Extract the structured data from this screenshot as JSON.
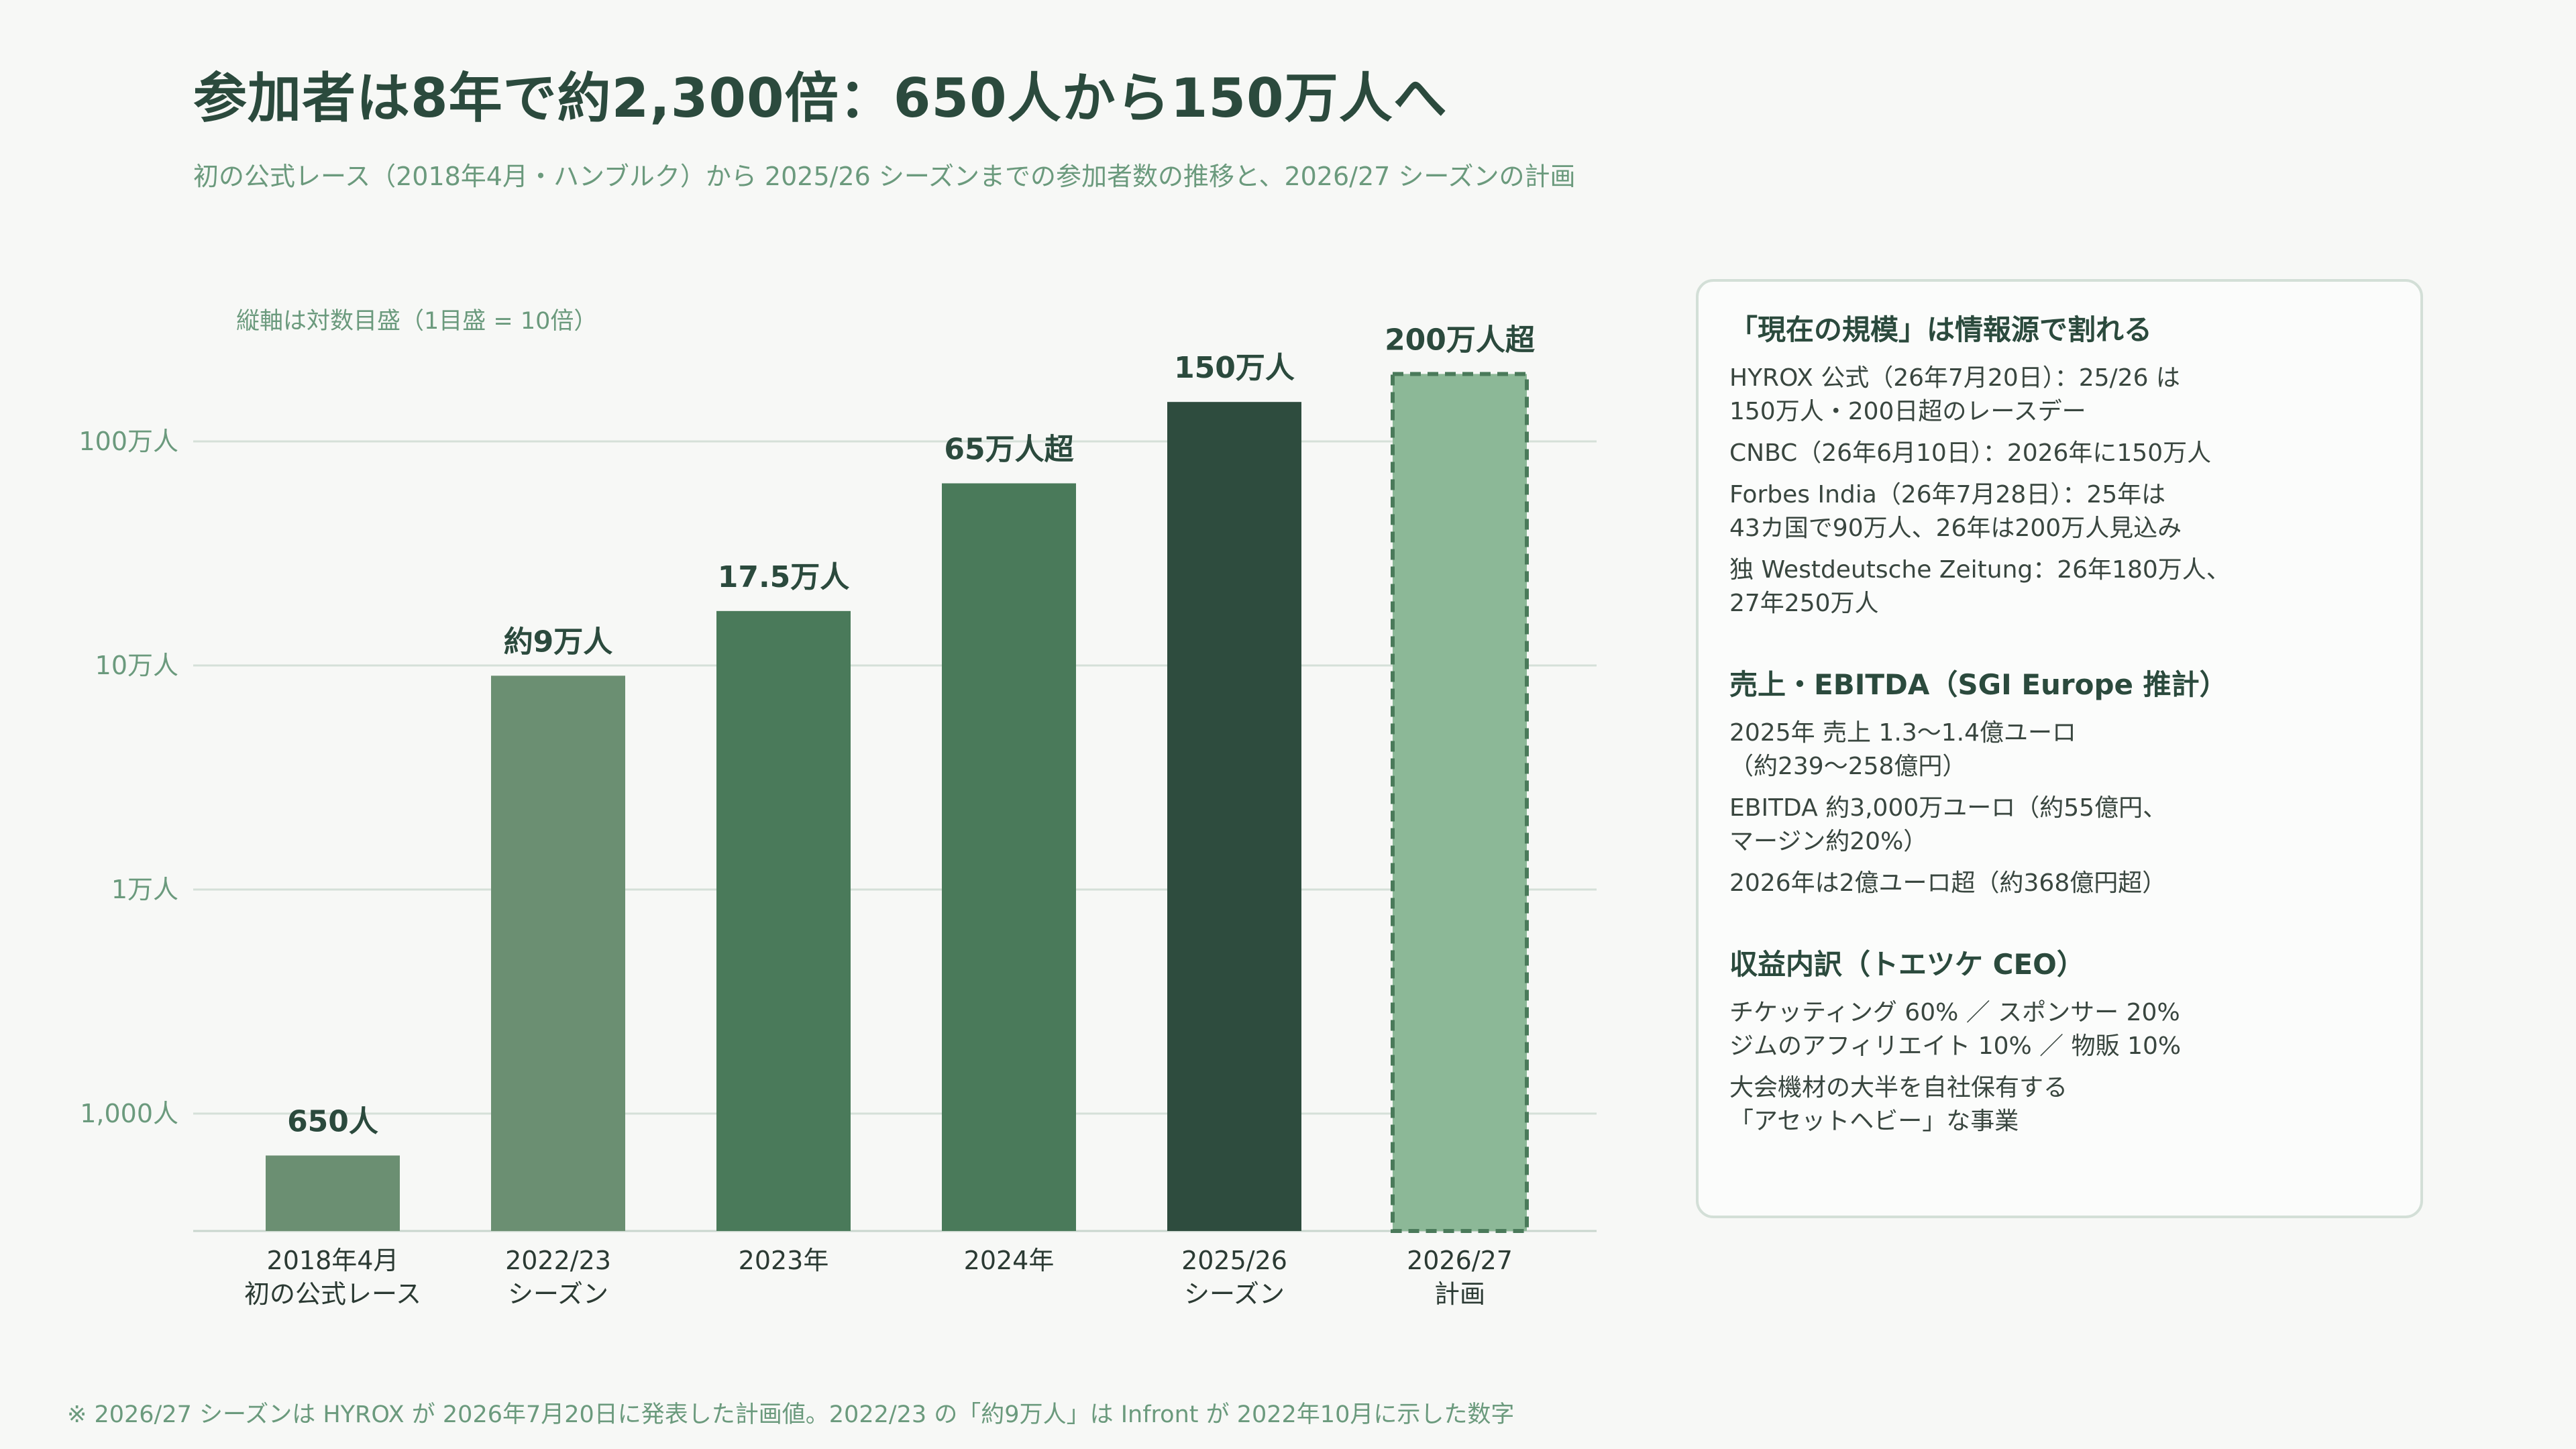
{
  "title": "参加者は8年で約2,300倍：650人から150万人へ",
  "subtitle": "初の公式レース（2018年4月・ハンブルク）から 2025/26 シーズンまでの参加者数の推移と、2026/27 シーズンの計画",
  "chart_data": {
    "type": "bar",
    "scale": "log",
    "note": "縦軸は対数目盛（1目盛 = 10倍）",
    "ylim": [
      300,
      2000000
    ],
    "yticks": [
      {
        "value": 1000,
        "label": "1,000人"
      },
      {
        "value": 10000,
        "label": "1万人"
      },
      {
        "value": 100000,
        "label": "10万人"
      },
      {
        "value": 1000000,
        "label": "100万人"
      }
    ],
    "grid": true,
    "categories": [
      {
        "line1": "2018年4月",
        "line2": "初の公式レース"
      },
      {
        "line1": "2022/23",
        "line2": "シーズン"
      },
      {
        "line1": "2023年",
        "line2": ""
      },
      {
        "line1": "2024年",
        "line2": ""
      },
      {
        "line1": "2025/26",
        "line2": "シーズン"
      },
      {
        "line1": "2026/27",
        "line2": "計画"
      }
    ],
    "values": [
      650,
      90000,
      175000,
      650000,
      1500000,
      2000000
    ],
    "value_labels": [
      "650人",
      "約9万人",
      "17.5万人",
      "65万人超",
      "150万人",
      "200万人超"
    ],
    "colors": [
      "#6b8f72",
      "#6b8f72",
      "#4a7a5a",
      "#4a7a5a",
      "#2e4c3e",
      "#8cb897"
    ],
    "planned": [
      false,
      false,
      false,
      false,
      false,
      true
    ]
  },
  "panel": {
    "sections": [
      {
        "heading": "「現在の規模」は情報源で割れる",
        "items": [
          "HYROX 公式（26年7月20日）：25/26 は\n150万人・200日超のレースデー",
          "CNBC（26年6月10日）：2026年に150万人",
          "Forbes India（26年7月28日）：25年は\n43カ国で90万人、26年は200万人見込み",
          "独 Westdeutsche Zeitung：26年180万人、\n27年250万人"
        ]
      },
      {
        "heading": "売上・EBITDA（SGI Europe 推計）",
        "items": [
          "2025年 売上 1.3〜1.4億ユーロ\n（約239〜258億円）",
          "EBITDA 約3,000万ユーロ（約55億円、\nマージン約20%）",
          "2026年は2億ユーロ超（約368億円超）"
        ]
      },
      {
        "heading": "収益内訳（トエツケ CEO）",
        "items": [
          "チケッティング 60% ／ スポンサー 20%\nジムのアフィリエイト 10% ／ 物販 10%",
          "大会機材の大半を自社保有する\n「アセットヘビー」な事業"
        ]
      }
    ]
  },
  "footnote": "※ 2026/27 シーズンは HYROX が 2026年7月20日に発表した計画値。2022/23 の「約9万人」は Infront が 2022年10月に示した数字"
}
